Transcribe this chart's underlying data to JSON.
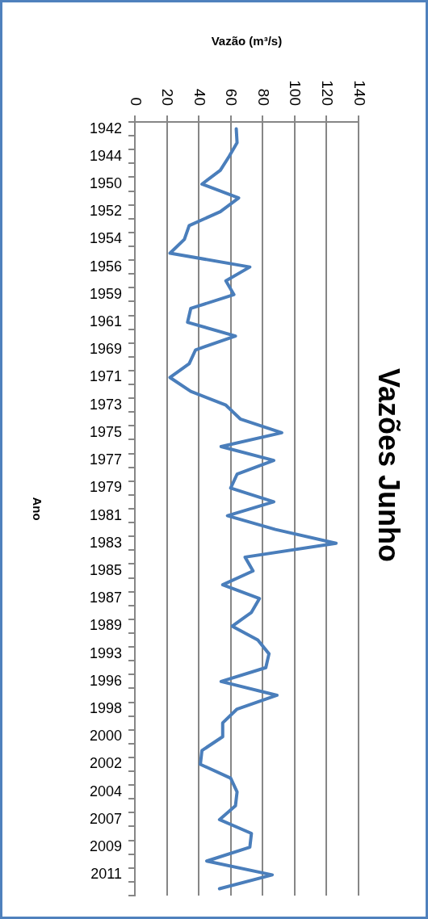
{
  "chart_data": {
    "type": "line",
    "orientation": "horizontal",
    "title": "Vazões Junho",
    "xlabel": "Vazão (m³/s)",
    "ylabel": "Ano",
    "categories": [
      "1942",
      null,
      "1944",
      null,
      "1950",
      null,
      "1952",
      null,
      "1954",
      null,
      "1956",
      null,
      "1959",
      null,
      "1961",
      null,
      "1969",
      null,
      "1971",
      null,
      "1973",
      null,
      "1975",
      null,
      "1977",
      null,
      "1979",
      null,
      "1981",
      null,
      "1983",
      null,
      "1985",
      null,
      "1987",
      null,
      "1989",
      null,
      "1993",
      null,
      "1996",
      null,
      "1998",
      null,
      "2000",
      null,
      "2002",
      null,
      "2004",
      null,
      "2007",
      null,
      "2009",
      null,
      "2011",
      null
    ],
    "series": [
      {
        "color": "#4a7ebb",
        "values": [
          63.5,
          64,
          59,
          53.5,
          42,
          65,
          53.5,
          34,
          31,
          22,
          72,
          57,
          62,
          35,
          33,
          63,
          38,
          34,
          22,
          35,
          57,
          66,
          92,
          54,
          87,
          64,
          60,
          87,
          58,
          88,
          126,
          69,
          74,
          55,
          78,
          73,
          61,
          77,
          84,
          82,
          54,
          89,
          64,
          55,
          55,
          42,
          41,
          60,
          64,
          63,
          53,
          73,
          72,
          45,
          86,
          53
        ]
      }
    ],
    "xlim": [
      0,
      140
    ],
    "xticks": [
      0,
      20,
      40,
      60,
      80,
      100,
      120,
      140
    ],
    "grid": "x",
    "legend": false,
    "marker": "none",
    "line_style": "solid"
  }
}
